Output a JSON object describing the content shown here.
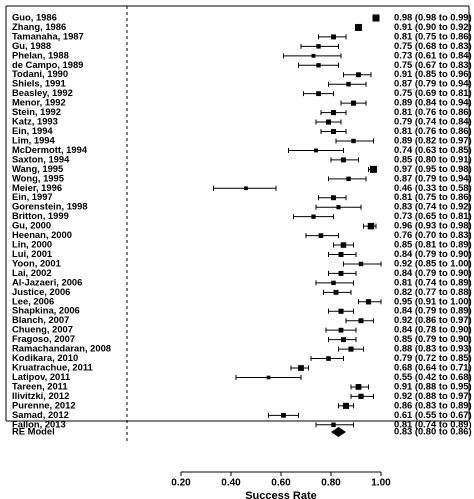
{
  "chart_data": {
    "type": "forest",
    "xlabel": "Success Rate",
    "xlim": [
      0.2,
      1.0
    ],
    "x_ticks": [
      "0.20",
      "0.40",
      "0.60",
      "0.80",
      "1.00"
    ],
    "reference_line_x": 0.0,
    "studies": [
      {
        "label": "Guo, 1986",
        "est": 0.98,
        "lo": 0.98,
        "hi": 0.99,
        "text": "0.98 (0.98 to 0.99)"
      },
      {
        "label": "Zhang, 1986",
        "est": 0.91,
        "lo": 0.9,
        "hi": 0.92,
        "text": "0.91 (0.90 to 0.92)"
      },
      {
        "label": "Tamanaha, 1987",
        "est": 0.81,
        "lo": 0.75,
        "hi": 0.86,
        "text": "0.81 (0.75 to 0.86)"
      },
      {
        "label": "Gu, 1988",
        "est": 0.75,
        "lo": 0.68,
        "hi": 0.83,
        "text": "0.75 (0.68 to 0.83)"
      },
      {
        "label": "Phelan, 1988",
        "est": 0.73,
        "lo": 0.61,
        "hi": 0.84,
        "text": "0.73 (0.61 to 0.84)"
      },
      {
        "label": "de Campo, 1989",
        "est": 0.75,
        "lo": 0.67,
        "hi": 0.83,
        "text": "0.75 (0.67 to 0.83)"
      },
      {
        "label": "Todani, 1990",
        "est": 0.91,
        "lo": 0.85,
        "hi": 0.96,
        "text": "0.91 (0.85 to 0.96)"
      },
      {
        "label": "Shiels, 1991",
        "est": 0.87,
        "lo": 0.79,
        "hi": 0.94,
        "text": "0.87 (0.79 to 0.94)"
      },
      {
        "label": "Beasley, 1992",
        "est": 0.75,
        "lo": 0.69,
        "hi": 0.81,
        "text": "0.75 (0.69 to 0.81)"
      },
      {
        "label": "Menor, 1992",
        "est": 0.89,
        "lo": 0.84,
        "hi": 0.94,
        "text": "0.89 (0.84 to 0.94)"
      },
      {
        "label": "Stein, 1992",
        "est": 0.81,
        "lo": 0.76,
        "hi": 0.86,
        "text": "0.81 (0.76 to 0.86)"
      },
      {
        "label": "Katz, 1993",
        "est": 0.79,
        "lo": 0.74,
        "hi": 0.84,
        "text": "0.79 (0.74 to 0.84)"
      },
      {
        "label": "Ein, 1994",
        "est": 0.81,
        "lo": 0.76,
        "hi": 0.86,
        "text": "0.81 (0.76 to 0.86)"
      },
      {
        "label": "Lim, 1994",
        "est": 0.89,
        "lo": 0.82,
        "hi": 0.97,
        "text": "0.89 (0.82 to 0.97)"
      },
      {
        "label": "McDermott, 1994",
        "est": 0.74,
        "lo": 0.63,
        "hi": 0.85,
        "text": "0.74 (0.63 to 0.85)"
      },
      {
        "label": "Saxton, 1994",
        "est": 0.85,
        "lo": 0.8,
        "hi": 0.91,
        "text": "0.85 (0.80 to 0.91)"
      },
      {
        "label": "Wang, 1995",
        "est": 0.97,
        "lo": 0.95,
        "hi": 0.98,
        "text": "0.97 (0.95 to 0.98)"
      },
      {
        "label": "Wong, 1995",
        "est": 0.87,
        "lo": 0.79,
        "hi": 0.94,
        "text": "0.87 (0.79 to 0.94)"
      },
      {
        "label": "Meier, 1996",
        "est": 0.46,
        "lo": 0.33,
        "hi": 0.58,
        "text": "0.46 (0.33 to 0.58)"
      },
      {
        "label": "Ein, 1997",
        "est": 0.81,
        "lo": 0.75,
        "hi": 0.86,
        "text": "0.81 (0.75 to 0.86)"
      },
      {
        "label": "Gorenstein, 1998",
        "est": 0.83,
        "lo": 0.74,
        "hi": 0.92,
        "text": "0.83 (0.74 to 0.92)"
      },
      {
        "label": "Britton, 1999",
        "est": 0.73,
        "lo": 0.65,
        "hi": 0.81,
        "text": "0.73 (0.65 to 0.81)"
      },
      {
        "label": "Gu, 2000",
        "est": 0.96,
        "lo": 0.93,
        "hi": 0.98,
        "text": "0.96 (0.93 to 0.98)"
      },
      {
        "label": "Heenan, 2000",
        "est": 0.76,
        "lo": 0.7,
        "hi": 0.83,
        "text": "0.76 (0.70 to 0.83)"
      },
      {
        "label": "Lin, 2000",
        "est": 0.85,
        "lo": 0.81,
        "hi": 0.89,
        "text": "0.85 (0.81 to 0.89)"
      },
      {
        "label": "Lui, 2001",
        "est": 0.84,
        "lo": 0.79,
        "hi": 0.9,
        "text": "0.84 (0.79 to 0.90)"
      },
      {
        "label": "Yoon, 2001",
        "est": 0.92,
        "lo": 0.85,
        "hi": 1.0,
        "text": "0.92 (0.85 to 1.00)"
      },
      {
        "label": "Lai, 2002",
        "est": 0.84,
        "lo": 0.79,
        "hi": 0.9,
        "text": "0.84 (0.79 to 0.90)"
      },
      {
        "label": "Al-Jazaeri, 2006",
        "est": 0.81,
        "lo": 0.74,
        "hi": 0.89,
        "text": "0.81 (0.74 to 0.89)"
      },
      {
        "label": "Justice, 2006",
        "est": 0.82,
        "lo": 0.77,
        "hi": 0.88,
        "text": "0.82 (0.77 to 0.88)"
      },
      {
        "label": "Lee, 2006",
        "est": 0.95,
        "lo": 0.91,
        "hi": 1.0,
        "text": "0.95 (0.91 to 1.00)"
      },
      {
        "label": "Shapkina, 2006",
        "est": 0.84,
        "lo": 0.79,
        "hi": 0.89,
        "text": "0.84 (0.79 to 0.89)"
      },
      {
        "label": "Blanch, 2007",
        "est": 0.92,
        "lo": 0.86,
        "hi": 0.97,
        "text": "0.92 (0.86 to 0.97)"
      },
      {
        "label": "Chueng, 2007",
        "est": 0.84,
        "lo": 0.78,
        "hi": 0.9,
        "text": "0.84 (0.78 to 0.90)"
      },
      {
        "label": "Fragoso, 2007",
        "est": 0.85,
        "lo": 0.79,
        "hi": 0.9,
        "text": "0.85 (0.79 to 0.90)"
      },
      {
        "label": "Ramachandaran, 2008",
        "est": 0.88,
        "lo": 0.83,
        "hi": 0.93,
        "text": "0.88 (0.83 to 0.93)"
      },
      {
        "label": "Kodikara, 2010",
        "est": 0.79,
        "lo": 0.72,
        "hi": 0.85,
        "text": "0.79 (0.72 to 0.85)"
      },
      {
        "label": "Kruatrachue, 2011",
        "est": 0.68,
        "lo": 0.64,
        "hi": 0.71,
        "text": "0.68 (0.64 to 0.71)"
      },
      {
        "label": "Latipov, 2011",
        "est": 0.55,
        "lo": 0.42,
        "hi": 0.68,
        "text": "0.55 (0.42 to 0.68)"
      },
      {
        "label": "Tareen, 2011",
        "est": 0.91,
        "lo": 0.88,
        "hi": 0.95,
        "text": "0.91 (0.88 to 0.95)"
      },
      {
        "label": "Ilivitzki, 2012",
        "est": 0.92,
        "lo": 0.88,
        "hi": 0.97,
        "text": "0.92 (0.88 to 0.97)"
      },
      {
        "label": "Purenne, 2012",
        "est": 0.86,
        "lo": 0.83,
        "hi": 0.89,
        "text": "0.86 (0.83 to 0.89)"
      },
      {
        "label": "Samad, 2012",
        "est": 0.61,
        "lo": 0.55,
        "hi": 0.67,
        "text": "0.61 (0.55 to 0.67)"
      },
      {
        "label": "Fallon, 2013",
        "est": 0.81,
        "lo": 0.74,
        "hi": 0.89,
        "text": "0.81 (0.74 to 0.89)"
      }
    ],
    "summary": {
      "label": "RE Model",
      "est": 0.83,
      "lo": 0.8,
      "hi": 0.86,
      "text": "0.83 (0.80 to 0.86)"
    }
  }
}
